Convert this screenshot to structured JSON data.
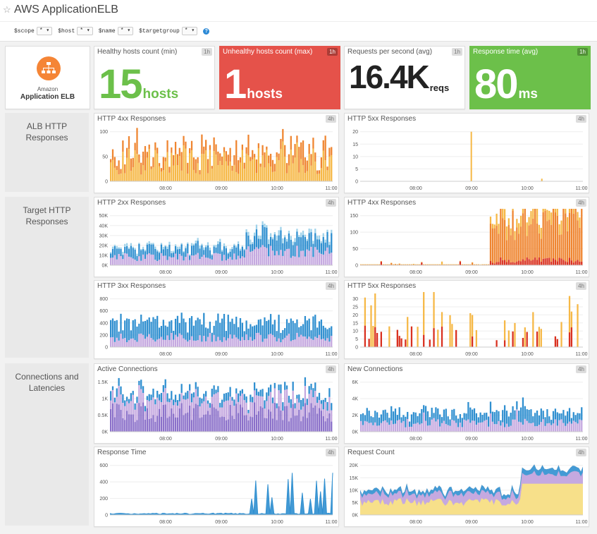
{
  "header": {
    "title": "AWS ApplicationELB",
    "template_vars": [
      {
        "name": "$scope",
        "value": "*"
      },
      {
        "name": "$host",
        "value": "*"
      },
      {
        "name": "$name",
        "value": "*"
      },
      {
        "name": "$targetgroup",
        "value": "*"
      }
    ]
  },
  "logo": {
    "line1": "Amazon",
    "line2": "Application ELB"
  },
  "query_values": [
    {
      "title": "Healthy hosts count (min)",
      "badge": "1h",
      "value": "15",
      "unit": "hosts",
      "bg": "#ffffff",
      "fg": "#6cc04a"
    },
    {
      "title": "Unhealthy hosts count (max)",
      "badge": "1h",
      "value": "1",
      "unit": "hosts",
      "bg": "#e5524a",
      "fg": "#ffffff"
    },
    {
      "title": "Requests per second (avg)",
      "badge": "1h",
      "value": "16.4K",
      "unit": "reqs",
      "bg": "#ffffff",
      "fg": "#222222"
    },
    {
      "title": "Response time (avg)",
      "badge": "1h",
      "value": "80",
      "unit": "ms",
      "bg": "#6cc04a",
      "fg": "#ffffff"
    }
  ],
  "groups": [
    {
      "label": "ALB HTTP Responses"
    },
    {
      "label": "Target HTTP Responses"
    },
    {
      "label": "Connections and Latencies"
    }
  ],
  "chart_data": [
    {
      "title": "HTTP 4xx Responses",
      "badge": "4h",
      "type": "bar",
      "yticks": [
        "100",
        "50",
        "0"
      ],
      "xticks": [
        "08:00",
        "09:00",
        "10:00",
        "11:00"
      ],
      "ylim": [
        0,
        110
      ],
      "x_range": [
        "07:00",
        "11:00"
      ],
      "series_colors": [
        "#f6b846",
        "#ef8530"
      ],
      "typical": [
        35,
        15
      ]
    },
    {
      "title": "HTTP 5xx Responses",
      "badge": "4h",
      "type": "bar",
      "yticks": [
        "20",
        "15",
        "10",
        "5",
        "0"
      ],
      "xticks": [
        "08:00",
        "09:00",
        "10:00",
        "11:00"
      ],
      "ylim": [
        0,
        20
      ],
      "x_range": [
        "07:00",
        "11:00"
      ],
      "series_colors": [
        "#f6b846",
        "#ef8530"
      ],
      "typical": [
        0,
        0
      ],
      "spikes": [
        {
          "x": "08:59",
          "value": 19
        },
        {
          "x": "10:15",
          "value": 1
        }
      ]
    },
    {
      "title": "HTTP 2xx Responses",
      "badge": "4h",
      "type": "bar",
      "yticks": [
        "50K",
        "40K",
        "30K",
        "20K",
        "10K",
        "0K"
      ],
      "xticks": [
        "08:00",
        "09:00",
        "10:00",
        "11:00"
      ],
      "ylim": [
        0,
        50000
      ],
      "x_range": [
        "07:00",
        "11:00"
      ],
      "series_colors": [
        "#c5a9e0",
        "#2f8fd0",
        "#9fd2ea"
      ],
      "typical": [
        8000,
        8000,
        2000
      ]
    },
    {
      "title": "HTTP 4xx Responses",
      "badge": "4h",
      "type": "bar",
      "yticks": [
        "150",
        "100",
        "50",
        "0"
      ],
      "xticks": [
        "08:00",
        "09:00",
        "10:00",
        "11:00"
      ],
      "ylim": [
        0,
        160
      ],
      "x_range": [
        "07:00",
        "11:00"
      ],
      "series_colors": [
        "#d9301f",
        "#ef8530",
        "#f6b846"
      ],
      "typical": [
        10,
        80,
        20
      ]
    },
    {
      "title": "HTTP 3xx Responses",
      "badge": "4h",
      "type": "bar",
      "yticks": [
        "800",
        "600",
        "400",
        "200",
        "0"
      ],
      "xticks": [
        "08:00",
        "09:00",
        "10:00",
        "11:00"
      ],
      "ylim": [
        0,
        800
      ],
      "x_range": [
        "07:00",
        "11:00"
      ],
      "series_colors": [
        "#c5a9e0",
        "#2f8fd0"
      ],
      "typical": [
        150,
        250
      ]
    },
    {
      "title": "HTTP 5xx Responses",
      "badge": "4h",
      "type": "bar",
      "yticks": [
        "30",
        "25",
        "20",
        "15",
        "10",
        "5",
        "0"
      ],
      "xticks": [
        "08:00",
        "09:00",
        "10:00",
        "11:00"
      ],
      "ylim": [
        0,
        30
      ],
      "x_range": [
        "07:00",
        "11:00"
      ],
      "series_colors": [
        "#d9301f",
        "#f6b846"
      ],
      "typical": [
        5,
        10
      ]
    },
    {
      "title": "Active Connections",
      "badge": "4h",
      "type": "bar",
      "yticks": [
        "1.5K",
        "1K",
        "0.5K",
        "0K"
      ],
      "xticks": [
        "08:00",
        "09:00",
        "10:00",
        "11:00"
      ],
      "ylim": [
        0,
        1600
      ],
      "x_range": [
        "07:00",
        "11:00"
      ],
      "series_colors": [
        "#8a6fc9",
        "#c5a9e0",
        "#2f8fd0"
      ],
      "typical": [
        600,
        400,
        200
      ]
    },
    {
      "title": "New Connections",
      "badge": "4h",
      "type": "bar",
      "yticks": [
        "6K",
        "4K",
        "2K",
        "0K"
      ],
      "xticks": [
        "08:00",
        "09:00",
        "10:00",
        "11:00"
      ],
      "ylim": [
        0,
        6000
      ],
      "x_range": [
        "07:00",
        "11:00"
      ],
      "series_colors": [
        "#c5a9e0",
        "#2f8fd0"
      ],
      "typical": [
        1000,
        1200
      ]
    },
    {
      "title": "Response Time",
      "badge": "4h",
      "type": "area",
      "yticks": [
        "600",
        "400",
        "200",
        "0"
      ],
      "xticks": [
        "08:00",
        "09:00",
        "10:00",
        "11:00"
      ],
      "ylim": [
        0,
        650
      ],
      "x_range": [
        "07:00",
        "11:00"
      ],
      "series_colors": [
        "#2f8fd0"
      ],
      "typical": [
        15
      ]
    },
    {
      "title": "Request Count",
      "badge": "4h",
      "type": "area",
      "yticks": [
        "20K",
        "15K",
        "10K",
        "5K",
        "0K"
      ],
      "xticks": [
        "08:00",
        "09:00",
        "10:00",
        "11:00"
      ],
      "ylim": [
        0,
        20000
      ],
      "x_range": [
        "07:00",
        "11:00"
      ],
      "series_colors": [
        "#f7e08a",
        "#c5a9e0",
        "#2f8fd0"
      ],
      "typical": [
        5000,
        3000,
        1500
      ]
    }
  ]
}
